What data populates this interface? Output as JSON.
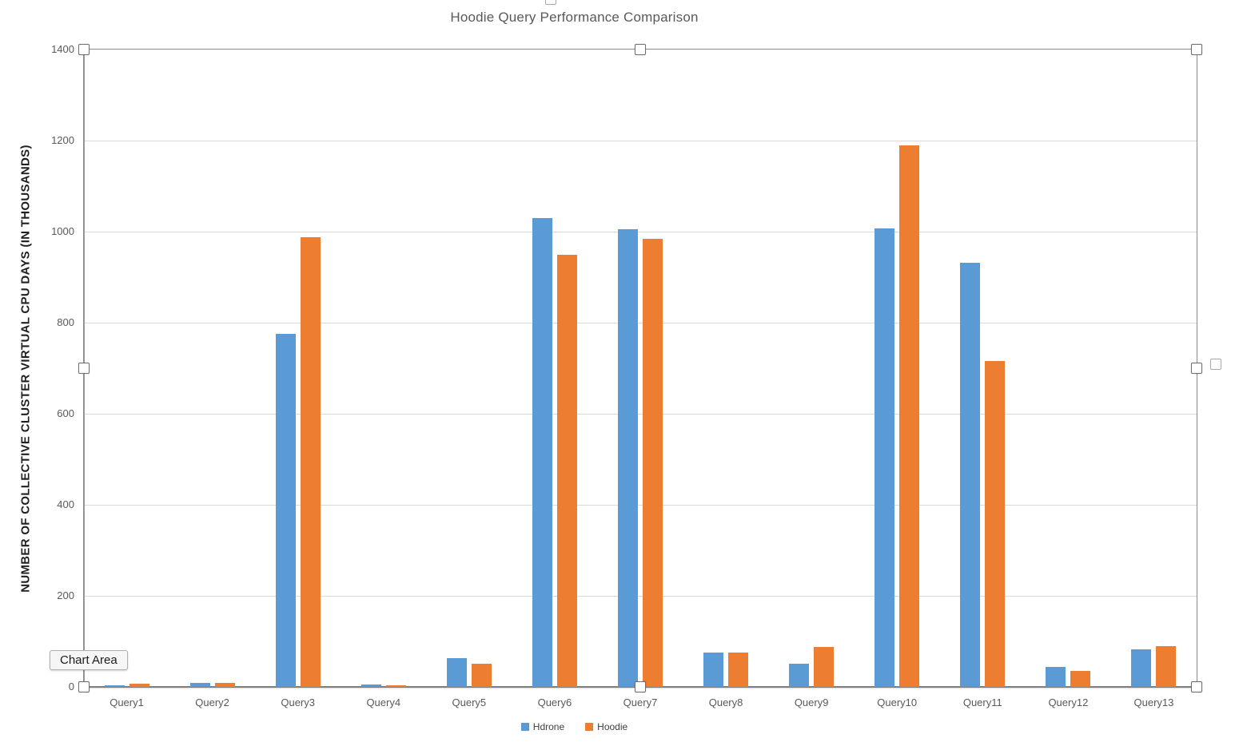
{
  "chart_data": {
    "type": "bar",
    "title": "Hoodie Query Performance Comparison",
    "xlabel": "",
    "ylabel": "NUMBER OF COLLECTIVE CLUSTER VIRTUAL CPU DAYS (IN THOUSANDS)",
    "categories": [
      "Query1",
      "Query2",
      "Query3",
      "Query4",
      "Query5",
      "Query6",
      "Query7",
      "Query8",
      "Query9",
      "Query10",
      "Query11",
      "Query12",
      "Query13"
    ],
    "series": [
      {
        "name": "Hdrone",
        "color": "#5B9BD5",
        "values": [
          4,
          8,
          775,
          5,
          64,
          1030,
          1005,
          75,
          51,
          1007,
          932,
          43,
          82
        ]
      },
      {
        "name": "Hoodie",
        "color": "#ED7D31",
        "values": [
          7,
          8,
          987,
          4,
          51,
          949,
          984,
          76,
          88,
          1189,
          716,
          35,
          90
        ]
      }
    ],
    "ylim": [
      0,
      1400
    ],
    "yticks": [
      0,
      200,
      400,
      600,
      800,
      1000,
      1200,
      1400
    ],
    "grid": true,
    "legend_position": "bottom"
  },
  "ui": {
    "tooltip_label": "Chart Area"
  }
}
